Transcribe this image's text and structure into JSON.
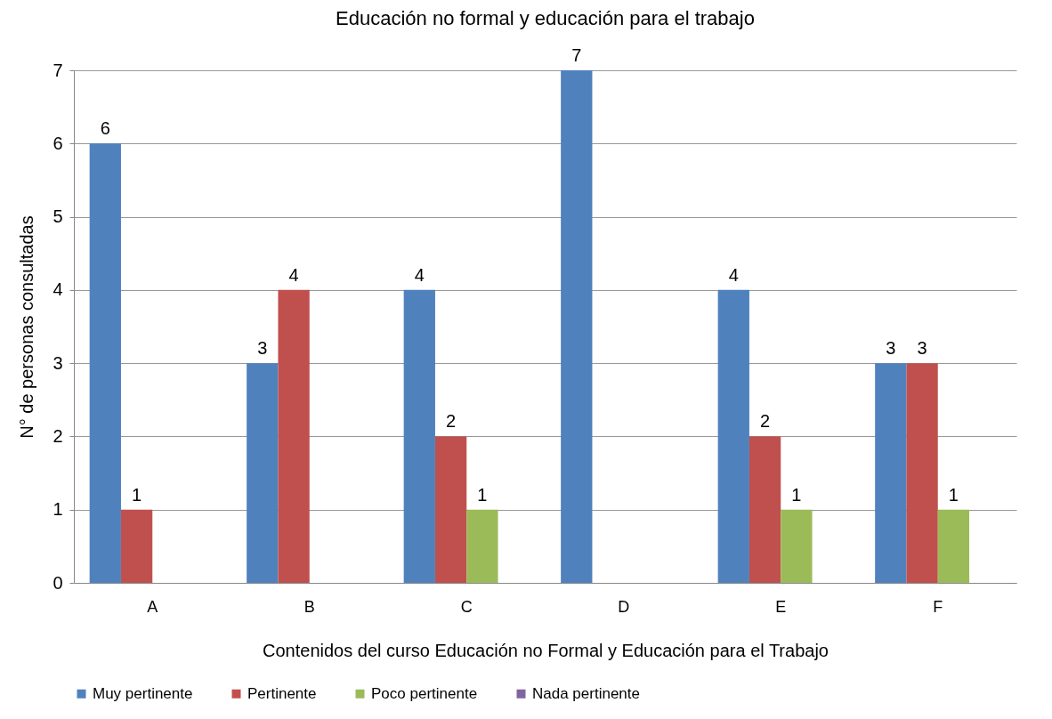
{
  "chart_data": {
    "type": "bar",
    "title": "Educación no formal y educación para el trabajo",
    "xlabel": "Contenidos del curso Educación no Formal y Educación para el Trabajo",
    "ylabel": "N° de personas consultadas",
    "categories": [
      "A",
      "B",
      "C",
      "D",
      "E",
      "F"
    ],
    "series": [
      {
        "name": "Muy pertinente",
        "color": "#4f81bd",
        "values": [
          6,
          3,
          4,
          7,
          4,
          3
        ]
      },
      {
        "name": "Pertinente",
        "color": "#c0504d",
        "values": [
          1,
          4,
          2,
          null,
          2,
          3
        ]
      },
      {
        "name": "Poco pertinente",
        "color": "#9bbb59",
        "values": [
          null,
          null,
          1,
          null,
          1,
          1
        ]
      },
      {
        "name": "Nada pertinente",
        "color": "#8064a2",
        "values": [
          null,
          null,
          null,
          null,
          null,
          null
        ]
      }
    ],
    "ylim": [
      0,
      7
    ],
    "yticks": [
      0,
      1,
      2,
      3,
      4,
      5,
      6,
      7
    ],
    "grid": true,
    "legend": "bottom",
    "data_labels": true
  }
}
